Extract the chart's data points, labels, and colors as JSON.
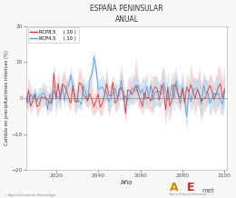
{
  "title": "ESPAÑA PENINSULAR",
  "subtitle": "ANUAL",
  "xlabel": "Año",
  "ylabel": "Cambio en precipitaciones intensas (%)",
  "xlim": [
    2006,
    2101
  ],
  "ylim": [
    -20,
    20
  ],
  "yticks": [
    -20,
    -10,
    0,
    10,
    20
  ],
  "xticks": [
    2020,
    2040,
    2060,
    2080,
    2100
  ],
  "rcp85_color": "#cc3333",
  "rcp45_color": "#5599cc",
  "rcp85_shade": "#f2c0c0",
  "rcp45_shade": "#c0d8f0",
  "legend_labels": [
    "RCP8.5     ( 10 )",
    "RCP4.5     ( 10 )"
  ],
  "background_color": "#f7f7f5",
  "plot_bg": "#ffffff",
  "seed": 12,
  "n_years": 95,
  "start_year": 2006
}
